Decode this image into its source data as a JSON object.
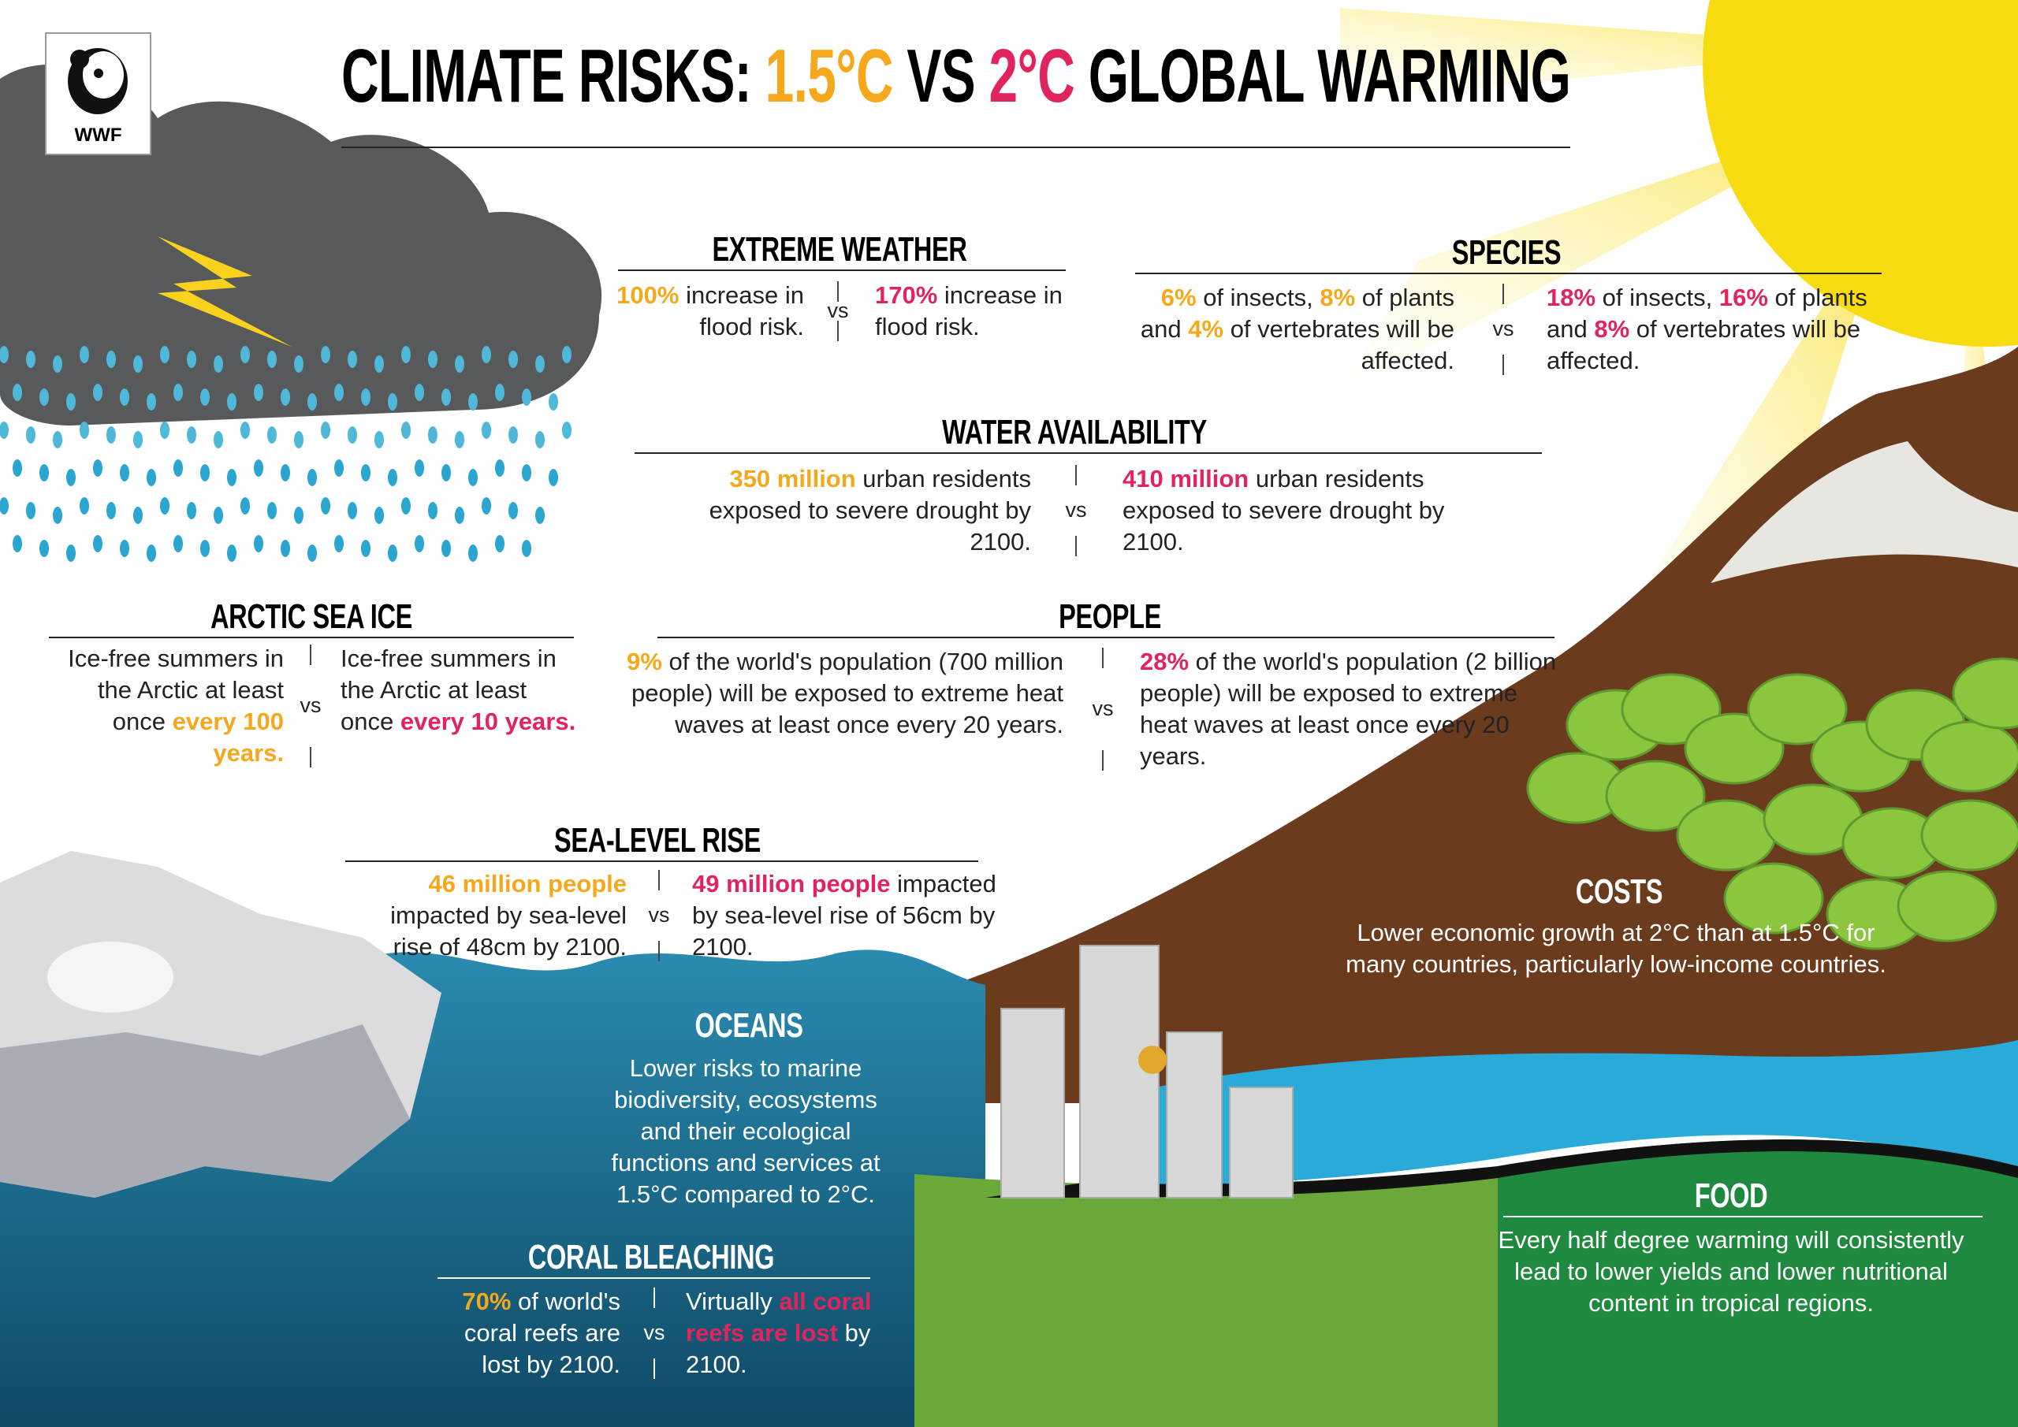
{
  "header": {
    "logo": "WWF",
    "title": [
      {
        "text": "CLIMATE RISKS: "
      },
      {
        "text": "1.5°C",
        "color": "#f6a81c"
      },
      {
        "text": " VS "
      },
      {
        "text": "2°C",
        "color": "#e2245e"
      },
      {
        "text": " GLOBAL WARMING"
      }
    ]
  },
  "sections": {
    "extreme_weather": {
      "heading": "EXTREME WEATHER",
      "left": [
        {
          "text": "100%",
          "color": "#f6a81c"
        },
        {
          "text": " increase in flood risk."
        }
      ],
      "vs": "vs",
      "right": [
        {
          "text": "170%",
          "color": "#e2245e"
        },
        {
          "text": " increase in flood risk."
        }
      ]
    },
    "species": {
      "heading": "SPECIES",
      "left": [
        {
          "text": "6%",
          "color": "#f6a81c"
        },
        {
          "text": " of insects, "
        },
        {
          "text": "8%",
          "color": "#f6a81c"
        },
        {
          "text": " of plants and "
        },
        {
          "text": "4%",
          "color": "#f6a81c"
        },
        {
          "text": " of vertebrates will be affected."
        }
      ],
      "vs": "vs",
      "right": [
        {
          "text": "18%",
          "color": "#e2245e"
        },
        {
          "text": " of insects, "
        },
        {
          "text": "16%",
          "color": "#e2245e"
        },
        {
          "text": " of plants and "
        },
        {
          "text": "8%",
          "color": "#e2245e"
        },
        {
          "text": " of vertebrates will be affected."
        }
      ]
    },
    "water_availability": {
      "heading": "WATER AVAILABILITY",
      "left": [
        {
          "text": "350 million",
          "color": "#f6a81c"
        },
        {
          "text": " urban residents exposed to severe drought by 2100."
        }
      ],
      "vs": "vs",
      "right": [
        {
          "text": "410 million",
          "color": "#e2245e"
        },
        {
          "text": " urban residents exposed to severe drought by 2100."
        }
      ]
    },
    "arctic_sea_ice": {
      "heading": "ARCTIC SEA ICE",
      "left": [
        {
          "text": "Ice-free summers in the Arctic at least once "
        },
        {
          "text": "every 100 years.",
          "color": "#f6a81c"
        }
      ],
      "vs": "vs",
      "right": [
        {
          "text": "Ice-free summers in the Arctic at least once "
        },
        {
          "text": "every 10 years.",
          "color": "#e2245e"
        }
      ]
    },
    "people": {
      "heading": "PEOPLE",
      "left": [
        {
          "text": "9%",
          "color": "#f6a81c"
        },
        {
          "text": " of the world's population (700 million people) will be exposed to extreme heat waves at least once every 20 years."
        }
      ],
      "vs": "vs",
      "right": [
        {
          "text": "28%",
          "color": "#e2245e"
        },
        {
          "text": " of the world's population (2 billion people) will be exposed to extreme heat waves at least once every 20 years."
        }
      ]
    },
    "sea_level_rise": {
      "heading": "SEA-LEVEL RISE",
      "left": [
        {
          "text": "46 million people",
          "color": "#f6a81c"
        },
        {
          "text": " impacted by sea-level rise of 48cm by 2100."
        }
      ],
      "vs": "vs",
      "right": [
        {
          "text": "49 million people",
          "color": "#e2245e"
        },
        {
          "text": " impacted by sea-level rise of 56cm by 2100."
        }
      ]
    },
    "oceans": {
      "heading": "OCEANS",
      "text": "Lower risks to marine biodiversity, ecosystems and their ecological functions and services at 1.5°C compared to 2°C."
    },
    "coral_bleaching": {
      "heading": "CORAL BLEACHING",
      "left": [
        {
          "text": "70%",
          "color": "#f6a81c"
        },
        {
          "text": " of world's coral reefs are lost by 2100."
        }
      ],
      "vs": "vs",
      "right": [
        {
          "text": "Virtually "
        },
        {
          "text": "all coral reefs are lost",
          "color": "#e2245e"
        },
        {
          "text": " by 2100."
        }
      ]
    },
    "costs": {
      "heading": "COSTS",
      "text": "Lower economic growth at 2°C than at 1.5°C for many countries, particularly low-income countries."
    },
    "food": {
      "heading": "FOOD",
      "text": "Every half degree warming will consistently lead to lower yields and lower nutritional content in tropical regions."
    }
  }
}
